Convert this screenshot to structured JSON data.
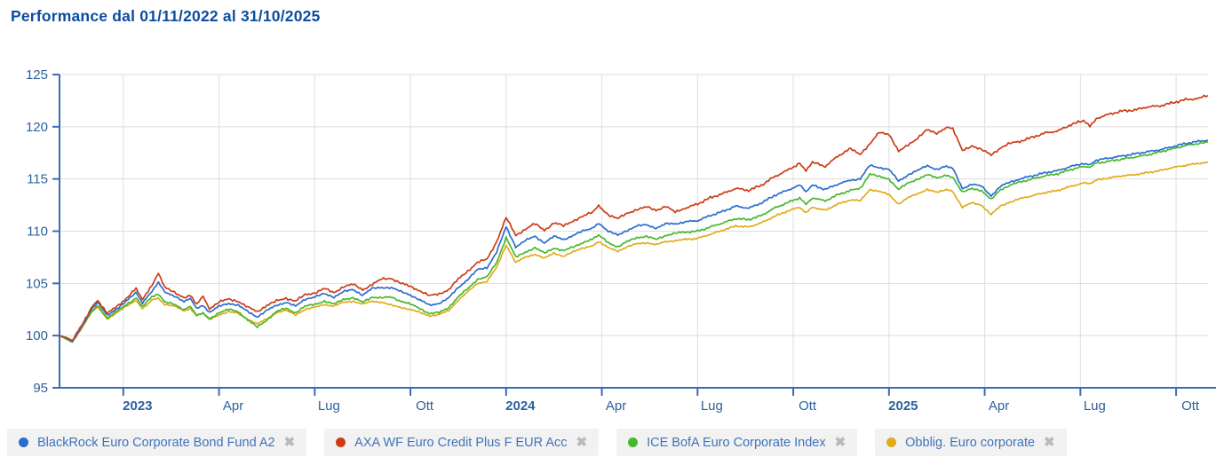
{
  "page": {
    "title": "Performance dal 01/11/2022 al 31/10/2025"
  },
  "colors": {
    "title_text": "#0c4da0",
    "axis_line": "#3a6db4",
    "grid_line": "#dedede",
    "tick_label": "#2e619f",
    "legend_text": "#3f74ba",
    "legend_bg": "#f2f2f2",
    "close_icon": "#b7bbc0"
  },
  "chart_data": {
    "type": "line",
    "title": "Performance dal 01/11/2022 al 31/10/2025",
    "xlabel": "",
    "ylabel": "",
    "ylim": [
      95,
      125
    ],
    "grid": true,
    "legend_position": "bottom",
    "x_unit": "months since 2022-11-01",
    "x_range": [
      0,
      36
    ],
    "y_ticks": [
      95,
      100,
      105,
      110,
      115,
      120,
      125
    ],
    "x_ticks": [
      {
        "label": "2023",
        "month": 2,
        "bold": true
      },
      {
        "label": "Apr",
        "month": 5,
        "bold": false
      },
      {
        "label": "Lug",
        "month": 8,
        "bold": false
      },
      {
        "label": "Ott",
        "month": 11,
        "bold": false
      },
      {
        "label": "2024",
        "month": 14,
        "bold": true
      },
      {
        "label": "Apr",
        "month": 17,
        "bold": false
      },
      {
        "label": "Lug",
        "month": 20,
        "bold": false
      },
      {
        "label": "Ott",
        "month": 23,
        "bold": false
      },
      {
        "label": "2025",
        "month": 26,
        "bold": true
      },
      {
        "label": "Apr",
        "month": 29,
        "bold": false
      },
      {
        "label": "Lug",
        "month": 32,
        "bold": false
      },
      {
        "label": "Ott",
        "month": 35,
        "bold": false
      }
    ],
    "x": [
      0,
      0.2,
      0.4,
      0.7,
      1,
      1.2,
      1.5,
      1.8,
      2.1,
      2.4,
      2.6,
      2.9,
      3.1,
      3.3,
      3.6,
      3.9,
      4.1,
      4.3,
      4.5,
      4.7,
      5,
      5.3,
      5.6,
      5.9,
      6.2,
      6.5,
      6.8,
      7.1,
      7.4,
      7.7,
      8,
      8.3,
      8.6,
      8.9,
      9.2,
      9.5,
      9.8,
      10.1,
      10.4,
      10.7,
      11,
      11.3,
      11.6,
      11.9,
      12.2,
      12.5,
      12.8,
      13.1,
      13.4,
      13.7,
      14,
      14.3,
      14.6,
      14.9,
      15.2,
      15.5,
      15.8,
      16.1,
      16.4,
      16.7,
      16.9,
      17.2,
      17.5,
      17.8,
      18.1,
      18.4,
      18.7,
      19,
      19.3,
      19.6,
      20,
      20.4,
      20.8,
      21.2,
      21.6,
      22,
      22.4,
      22.8,
      23.2,
      23.4,
      23.6,
      24,
      24.4,
      24.8,
      25.1,
      25.4,
      25.7,
      26,
      26.3,
      26.6,
      26.9,
      27.2,
      27.5,
      27.8,
      28,
      28.3,
      28.6,
      28.9,
      29.2,
      29.5,
      29.8,
      30.1,
      30.5,
      30.9,
      31.3,
      31.7,
      32.1,
      32.3,
      32.5,
      32.9,
      33.3,
      33.7,
      34.1,
      34.5,
      34.9,
      35.3,
      35.7,
      36
    ],
    "series": [
      {
        "name": "BlackRock Euro Corporate Bond Fund A2",
        "color": "#2a6dd0",
        "values": [
          100,
          99.8,
          99.4,
          100.9,
          102.5,
          103.2,
          101.9,
          102.6,
          103.3,
          104.1,
          103.1,
          104.3,
          105.1,
          104.2,
          103.8,
          103.2,
          103.5,
          102.6,
          102.9,
          102.2,
          102.8,
          103.1,
          102.9,
          102.3,
          101.8,
          102.4,
          102.9,
          103.2,
          102.8,
          103.5,
          103.7,
          104,
          103.7,
          104.2,
          104.4,
          103.9,
          104.5,
          104.6,
          104.6,
          104.2,
          103.9,
          103.4,
          102.9,
          103.1,
          103.6,
          104.6,
          105.4,
          106.3,
          106.5,
          108,
          110.4,
          108.5,
          109.1,
          109.5,
          108.9,
          109.5,
          109.2,
          109.6,
          110,
          110.3,
          110.8,
          110,
          109.6,
          110.1,
          110.5,
          110.6,
          110.3,
          110.7,
          110.7,
          110.9,
          111,
          111.5,
          111.9,
          112.4,
          112.2,
          112.7,
          113.4,
          113.9,
          114.4,
          113.7,
          114.4,
          114,
          114.5,
          114.9,
          115,
          116.3,
          116.1,
          115.9,
          114.8,
          115.4,
          115.8,
          116.3,
          115.9,
          116.2,
          116,
          114.1,
          114.5,
          114.3,
          113.4,
          114.3,
          114.7,
          115,
          115.3,
          115.6,
          115.8,
          116.2,
          116.5,
          116.4,
          116.8,
          117,
          117.2,
          117.4,
          117.6,
          117.8,
          118.1,
          118.4,
          118.6,
          118.7
        ]
      },
      {
        "name": "AXA WF Euro Credit Plus F EUR Acc",
        "color": "#cb3d16",
        "values": [
          100,
          99.8,
          99.5,
          101,
          102.7,
          103.4,
          102.1,
          102.8,
          103.6,
          104.5,
          103.4,
          104.8,
          106,
          104.6,
          104.2,
          103.6,
          103.9,
          103,
          103.8,
          102.6,
          103.2,
          103.5,
          103.3,
          102.7,
          102.3,
          102.9,
          103.3,
          103.6,
          103.3,
          103.9,
          104.1,
          104.5,
          104.1,
          104.7,
          104.9,
          104.4,
          104.9,
          105.4,
          105.5,
          105,
          104.7,
          104.3,
          103.8,
          104,
          104.4,
          105.4,
          106.2,
          107,
          107.3,
          109,
          111.3,
          109.6,
          110.2,
          110.7,
          110.1,
          110.8,
          110.5,
          111,
          111.4,
          111.8,
          112.4,
          111.6,
          111.2,
          111.7,
          112.1,
          112.3,
          112,
          112.4,
          111.8,
          112.2,
          112.6,
          113.2,
          113.6,
          114.1,
          113.9,
          114.4,
          115.2,
          115.8,
          116.5,
          115.8,
          116.6,
          116.2,
          117.2,
          117.9,
          117.4,
          118.3,
          119.5,
          119.3,
          117.6,
          118.3,
          118.9,
          119.7,
          119.4,
          119.9,
          119.8,
          117.7,
          118.2,
          117.8,
          117.3,
          118,
          118.4,
          118.6,
          119,
          119.4,
          119.6,
          120.2,
          120.6,
          120.1,
          120.8,
          121.2,
          121.5,
          121.6,
          121.9,
          122,
          122.3,
          122.6,
          122.7,
          123
        ]
      },
      {
        "name": "ICE BofA Euro Corporate Index",
        "color": "#46b82e",
        "values": [
          100,
          99.7,
          99.4,
          100.8,
          102.3,
          102.9,
          101.7,
          102.3,
          103,
          103.6,
          102.8,
          103.7,
          103.9,
          103.2,
          103,
          102.5,
          102.8,
          102,
          102.2,
          101.6,
          102.2,
          102.5,
          102.3,
          101.5,
          100.8,
          101.5,
          102.3,
          102.6,
          102.2,
          102.8,
          103,
          103.3,
          103,
          103.5,
          103.6,
          103.2,
          103.7,
          103.6,
          103.7,
          103.3,
          103,
          102.6,
          102.1,
          102.2,
          102.7,
          103.7,
          104.5,
          105.4,
          105.6,
          107,
          109.4,
          107.5,
          108,
          108.4,
          107.9,
          108.4,
          108.1,
          108.5,
          108.9,
          109.2,
          109.6,
          108.9,
          108.5,
          109,
          109.4,
          109.5,
          109.2,
          109.6,
          109.8,
          109.9,
          110,
          110.4,
          110.8,
          111.2,
          111.1,
          111.5,
          112.2,
          112.7,
          113.2,
          112.6,
          113.2,
          112.9,
          113.5,
          113.9,
          114.1,
          115.5,
          115.2,
          115,
          114,
          114.6,
          115,
          115.4,
          115.1,
          115.4,
          115.2,
          113.7,
          114.1,
          113.9,
          113,
          114,
          114.4,
          114.7,
          115,
          115.3,
          115.5,
          115.9,
          116.2,
          116.1,
          116.5,
          116.7,
          116.9,
          117.1,
          117.3,
          117.6,
          117.9,
          118.2,
          118.4,
          118.5
        ]
      },
      {
        "name": "Obblig. Euro corporate",
        "color": "#e2ab1a",
        "values": [
          100,
          99.7,
          99.4,
          100.7,
          102.2,
          102.7,
          101.6,
          102.2,
          102.8,
          103.4,
          102.6,
          103.4,
          103.6,
          103,
          102.8,
          102.4,
          102.6,
          101.9,
          102.1,
          101.5,
          102,
          102.3,
          102.1,
          101.6,
          101.1,
          101.6,
          102.2,
          102.4,
          102,
          102.5,
          102.7,
          103,
          102.8,
          103.2,
          103.3,
          103,
          103.3,
          103.2,
          102.9,
          102.7,
          102.5,
          102.2,
          101.9,
          102,
          102.4,
          103.4,
          104.2,
          105,
          105.2,
          106.5,
          108.7,
          107,
          107.5,
          107.8,
          107.4,
          107.9,
          107.6,
          108,
          108.4,
          108.6,
          109,
          108.4,
          108.1,
          108.5,
          108.8,
          108.9,
          108.7,
          109,
          109.1,
          109.2,
          109.3,
          109.7,
          110.1,
          110.5,
          110.4,
          110.8,
          111.4,
          111.9,
          112.3,
          111.8,
          112.3,
          112,
          112.6,
          113,
          112.9,
          114,
          113.8,
          113.5,
          112.6,
          113.2,
          113.6,
          114,
          113.7,
          114,
          113.8,
          112.3,
          112.7,
          112.5,
          111.6,
          112.4,
          112.8,
          113.1,
          113.4,
          113.7,
          113.9,
          114.3,
          114.6,
          114.5,
          114.9,
          115.1,
          115.3,
          115.4,
          115.6,
          115.8,
          116.1,
          116.3,
          116.5,
          116.6
        ]
      }
    ],
    "legend_close_glyph": "✖"
  }
}
